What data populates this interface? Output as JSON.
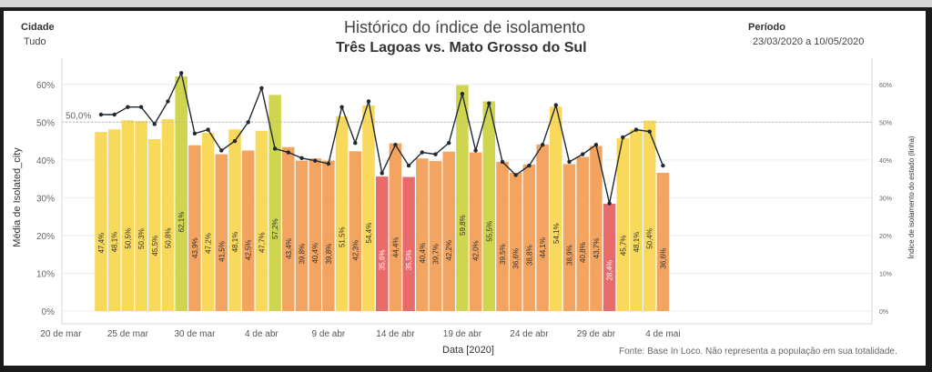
{
  "filters": {
    "city_label": "Cidade",
    "city_value": "Tudo",
    "period_label": "Período",
    "period_value": "23/03/2020 a 10/05/2020"
  },
  "title": "Histórico do índice de isolamento",
  "subtitle": "Três Lagoas vs. Mato Grosso do Sul",
  "source": "Fonte: Base In Loco. Não representa a população em sua totalidade.",
  "colors": {
    "frame_dark": "#1b1b1b",
    "bar_yellow": "#f9d95c",
    "bar_olive": "#cfd54e",
    "bar_orange": "#f3a461",
    "bar_red": "#e96a6b",
    "line": "#1f2a33",
    "reference": "#b9b9b9"
  },
  "chart_data": {
    "type": "bar",
    "xlabel": "Data [2020]",
    "ylabel": "Média de Isolated_city",
    "ylabel_right": "Índice de isolamento do estado (linha)",
    "ylim": [
      0,
      65
    ],
    "y_ticks": [
      "0%",
      "10%",
      "20%",
      "30%",
      "40%",
      "50%",
      "60%"
    ],
    "x_ticks": [
      "20 de mar",
      "25 de mar",
      "30 de mar",
      "4 de abr",
      "9 de abr",
      "14 de abr",
      "19 de abr",
      "24 de abr",
      "29 de abr",
      "4 de mai"
    ],
    "reference_line": {
      "value": 50,
      "label": "50,0%"
    },
    "bars": [
      {
        "date": "23/03",
        "value": 47.4,
        "label": "47,4%",
        "color": "yellow"
      },
      {
        "date": "24/03",
        "value": 48.1,
        "label": "48,1%",
        "color": "yellow"
      },
      {
        "date": "25/03",
        "value": 50.5,
        "label": "50,5%",
        "color": "yellow"
      },
      {
        "date": "26/03",
        "value": 50.3,
        "label": "50,3%",
        "color": "yellow"
      },
      {
        "date": "27/03",
        "value": 45.5,
        "label": "45,5%",
        "color": "yellow"
      },
      {
        "date": "28/03",
        "value": 50.8,
        "label": "50,8%",
        "color": "yellow"
      },
      {
        "date": "29/03",
        "value": 62.1,
        "label": "62,1%",
        "color": "olive"
      },
      {
        "date": "30/03",
        "value": 43.9,
        "label": "43,9%",
        "color": "orange"
      },
      {
        "date": "31/03",
        "value": 47.2,
        "label": "47,2%",
        "color": "yellow"
      },
      {
        "date": "01/04",
        "value": 41.5,
        "label": "41,5%",
        "color": "orange"
      },
      {
        "date": "02/04",
        "value": 48.1,
        "label": "48,1%",
        "color": "yellow"
      },
      {
        "date": "03/04",
        "value": 42.5,
        "label": "42,5%",
        "color": "orange"
      },
      {
        "date": "04/04",
        "value": 47.7,
        "label": "47,7%",
        "color": "yellow"
      },
      {
        "date": "05/04",
        "value": 57.2,
        "label": "57,2%",
        "color": "olive"
      },
      {
        "date": "06/04",
        "value": 43.4,
        "label": "43,4%",
        "color": "orange"
      },
      {
        "date": "07/04",
        "value": 39.8,
        "label": "39,8%",
        "color": "orange"
      },
      {
        "date": "08/04",
        "value": 40.4,
        "label": "40,4%",
        "color": "orange"
      },
      {
        "date": "09/04",
        "value": 39.8,
        "label": "39,8%",
        "color": "orange"
      },
      {
        "date": "10/04",
        "value": 51.5,
        "label": "51,5%",
        "color": "yellow"
      },
      {
        "date": "11/04",
        "value": 42.3,
        "label": "42,3%",
        "color": "orange"
      },
      {
        "date": "12/04",
        "value": 54.4,
        "label": "54,4%",
        "color": "yellow"
      },
      {
        "date": "13/04",
        "value": 35.6,
        "label": "35,6%",
        "color": "red"
      },
      {
        "date": "14/04",
        "value": 44.4,
        "label": "44,4%",
        "color": "orange"
      },
      {
        "date": "15/04",
        "value": 35.5,
        "label": "35,5%",
        "color": "red"
      },
      {
        "date": "16/04",
        "value": 40.4,
        "label": "40,4%",
        "color": "orange"
      },
      {
        "date": "17/04",
        "value": 39.7,
        "label": "39,7%",
        "color": "orange"
      },
      {
        "date": "18/04",
        "value": 42.2,
        "label": "42,2%",
        "color": "orange"
      },
      {
        "date": "19/04",
        "value": 59.8,
        "label": "59,8%",
        "color": "olive"
      },
      {
        "date": "20/04",
        "value": 42.0,
        "label": "42,0%",
        "color": "orange"
      },
      {
        "date": "21/04",
        "value": 55.5,
        "label": "55,5%",
        "color": "olive"
      },
      {
        "date": "22/04",
        "value": 39.5,
        "label": "39,5%",
        "color": "orange"
      },
      {
        "date": "23/04",
        "value": 36.6,
        "label": "36,6%",
        "color": "orange"
      },
      {
        "date": "24/04",
        "value": 38.8,
        "label": "38,8%",
        "color": "orange"
      },
      {
        "date": "25/04",
        "value": 44.1,
        "label": "44,1%",
        "color": "orange"
      },
      {
        "date": "26/04",
        "value": 54.1,
        "label": "54,1%",
        "color": "yellow"
      },
      {
        "date": "27/04",
        "value": 38.9,
        "label": "38,9%",
        "color": "orange"
      },
      {
        "date": "28/04",
        "value": 40.8,
        "label": "40,8%",
        "color": "orange"
      },
      {
        "date": "29/04",
        "value": 43.7,
        "label": "43,7%",
        "color": "orange"
      },
      {
        "date": "30/04",
        "value": 28.4,
        "label": "28,4%",
        "color": "red"
      },
      {
        "date": "01/05",
        "value": 45.7,
        "label": "45,7%",
        "color": "yellow"
      },
      {
        "date": "02/05",
        "value": 48.1,
        "label": "48,1%",
        "color": "yellow"
      },
      {
        "date": "03/05",
        "value": 50.4,
        "label": "50,4%",
        "color": "yellow"
      },
      {
        "date": "04/05",
        "value": 36.6,
        "label": "36,6%",
        "color": "orange"
      }
    ],
    "state_line": [
      52,
      52,
      54,
      54,
      49.5,
      55.5,
      63,
      47,
      48,
      42.5,
      45,
      50,
      59,
      43,
      42,
      40.5,
      39.8,
      39,
      54,
      44.5,
      55.5,
      36.5,
      44,
      38.5,
      42,
      41.5,
      44.5,
      57.5,
      42.5,
      55,
      39.5,
      36,
      38.5,
      44,
      54.5,
      39.5,
      41.5,
      44,
      28.5,
      46,
      48,
      47.5,
      38.5
    ],
    "grid": true,
    "legend": "none"
  }
}
